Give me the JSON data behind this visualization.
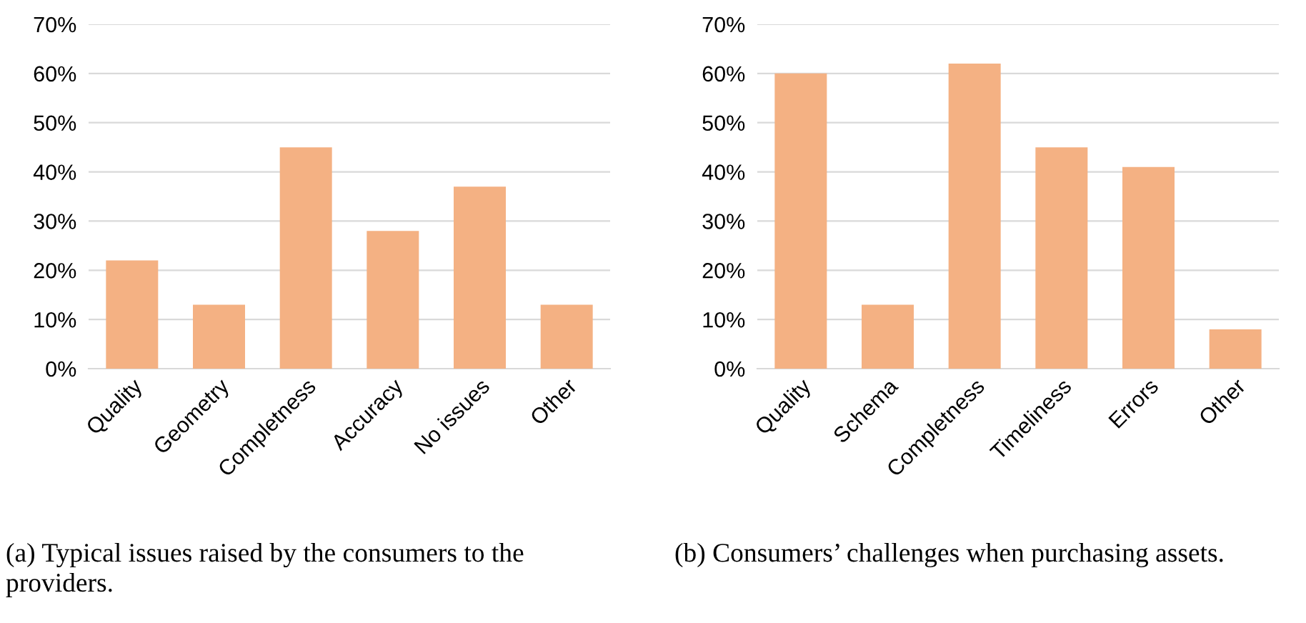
{
  "chart_data": [
    {
      "type": "bar",
      "categories": [
        "Quality",
        "Geometry",
        "Completness",
        "Accuracy",
        "No issues",
        "Other"
      ],
      "values": [
        22,
        13,
        45,
        28,
        37,
        13
      ],
      "color": "#f4b183",
      "ylim": [
        0,
        70
      ],
      "yticks": [
        {
          "value": 0,
          "label": "0%"
        },
        {
          "value": 10,
          "label": "10%"
        },
        {
          "value": 20,
          "label": "20%"
        },
        {
          "value": 30,
          "label": "30%"
        },
        {
          "value": 40,
          "label": "40%"
        },
        {
          "value": 50,
          "label": "50%"
        },
        {
          "value": 60,
          "label": "60%"
        },
        {
          "value": 70,
          "label": "70%"
        }
      ],
      "grid": "y",
      "annotations": [
        "(a) Typical issues raised by the consumers to the providers."
      ]
    },
    {
      "type": "bar",
      "categories": [
        "Quality",
        "Schema",
        "Completness",
        "Timeliness",
        "Errors",
        "Other"
      ],
      "values": [
        60,
        13,
        62,
        45,
        41,
        8
      ],
      "color": "#f4b183",
      "ylim": [
        0,
        70
      ],
      "yticks": [
        {
          "value": 0,
          "label": "0%"
        },
        {
          "value": 10,
          "label": "10%"
        },
        {
          "value": 20,
          "label": "20%"
        },
        {
          "value": 30,
          "label": "30%"
        },
        {
          "value": 40,
          "label": "40%"
        },
        {
          "value": 50,
          "label": "50%"
        },
        {
          "value": 60,
          "label": "60%"
        },
        {
          "value": 70,
          "label": "70%"
        }
      ],
      "grid": "y",
      "annotations": [
        "(b) Consumers’ challenges when purchasing assets."
      ]
    }
  ]
}
